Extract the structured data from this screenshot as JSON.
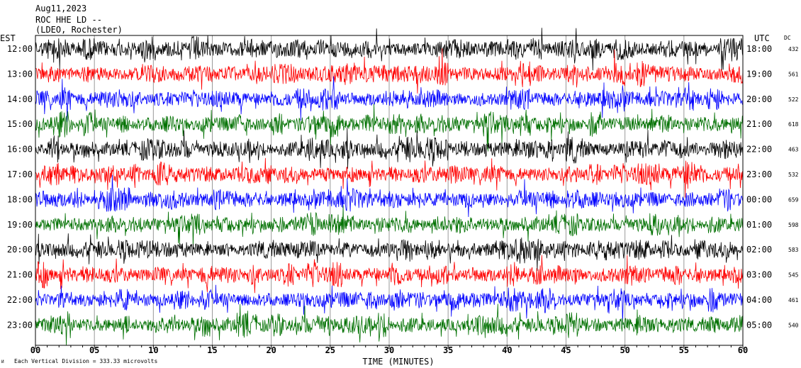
{
  "header": {
    "date": "Aug11,2023",
    "station": "ROC HHE LD --",
    "network": "(LDEO, Rochester)"
  },
  "left_axis_label": "EST",
  "right_axis_label": "UTC",
  "dc_label": "DC",
  "footer": {
    "mark": "И",
    "scale_text": "Each Vertical Division =  333.33 microvolts"
  },
  "chart_data": {
    "type": "line",
    "subtype": "helicorder seismogram",
    "xlabel": "TIME (MINUTES)",
    "xlim": [
      0,
      60
    ],
    "x_ticks": [
      "00",
      "05",
      "10",
      "15",
      "20",
      "25",
      "30",
      "35",
      "40",
      "45",
      "50",
      "55",
      "60"
    ],
    "grid": "vertical lines every 5 minutes",
    "trace_colors": [
      "#000000",
      "#ff0000",
      "#0000ff",
      "#007000"
    ],
    "rows": [
      {
        "est": "12:00",
        "utc": "18:00",
        "dc": "432"
      },
      {
        "est": "13:00",
        "utc": "19:00",
        "dc": "561"
      },
      {
        "est": "14:00",
        "utc": "20:00",
        "dc": "522"
      },
      {
        "est": "15:00",
        "utc": "21:00",
        "dc": "618"
      },
      {
        "est": "16:00",
        "utc": "22:00",
        "dc": "463"
      },
      {
        "est": "17:00",
        "utc": "23:00",
        "dc": "532"
      },
      {
        "est": "18:00",
        "utc": "00:00",
        "dc": "659"
      },
      {
        "est": "19:00",
        "utc": "01:00",
        "dc": "598"
      },
      {
        "est": "20:00",
        "utc": "02:00",
        "dc": "583"
      },
      {
        "est": "21:00",
        "utc": "03:00",
        "dc": "545"
      },
      {
        "est": "22:00",
        "utc": "04:00",
        "dc": "461"
      },
      {
        "est": "23:00",
        "utc": "05:00",
        "dc": "540"
      }
    ]
  }
}
